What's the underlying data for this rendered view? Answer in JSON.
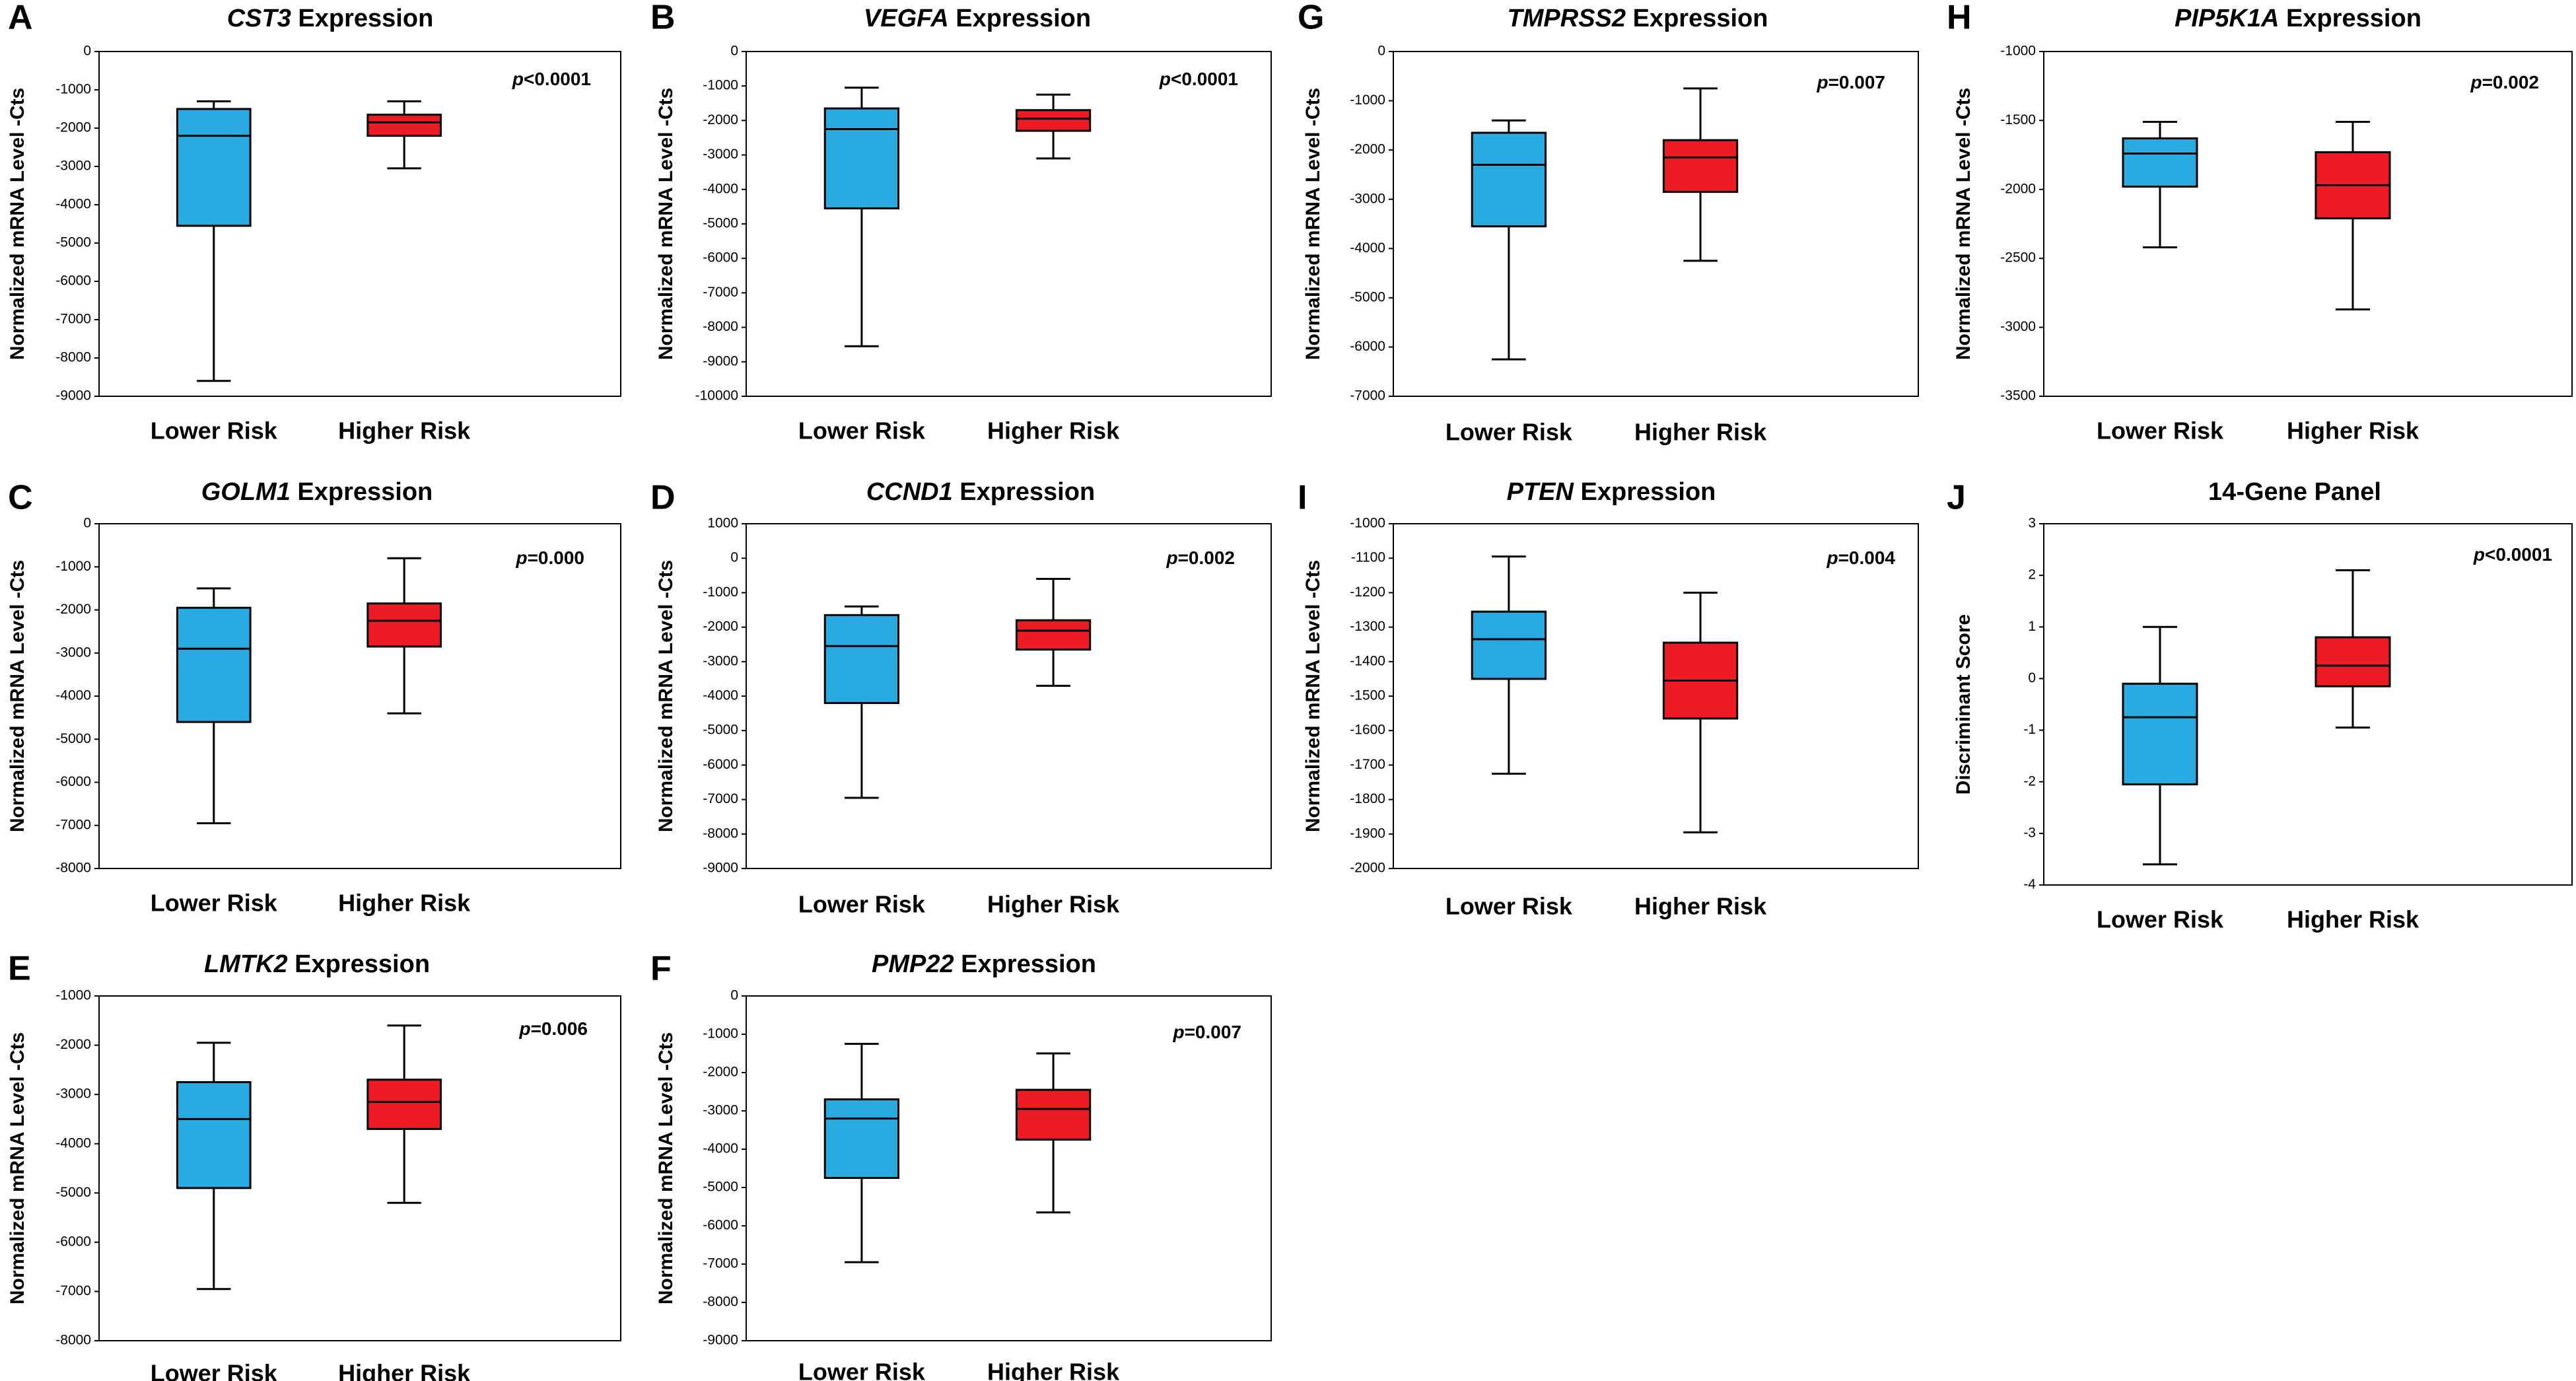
{
  "colors": {
    "lower": "#29abe2",
    "higher": "#ed1c24",
    "stroke": "#000000"
  },
  "chart_data": [
    {
      "type": "box",
      "id": "panel-a",
      "letter": "A",
      "title_italic": "CST3",
      "title_rest": " Expression",
      "ylabel": "Normalized mRNA Level -Cts",
      "ylim": [
        -9000,
        0
      ],
      "yticks": [
        0,
        -1000,
        -2000,
        -3000,
        -4000,
        -5000,
        -6000,
        -7000,
        -8000,
        -9000
      ],
      "ytick_labels": [
        "0",
        "-1000",
        "-2000",
        "-3000",
        "-4000",
        "-5000",
        "-6000",
        "-7000",
        "-8000",
        "-9000"
      ],
      "categories": [
        "Lower Risk",
        "Higher Risk"
      ],
      "p_prefix": "p",
      "p_rest": "<0.0001",
      "boxes": [
        {
          "name": "Lower Risk",
          "whisker_high": -1300,
          "q3": -1500,
          "median": -2200,
          "q1": -4550,
          "whisker_low": -8600
        },
        {
          "name": "Higher Risk",
          "whisker_high": -1300,
          "q3": -1650,
          "median": -1850,
          "q1": -2200,
          "whisker_low": -3050
        }
      ]
    },
    {
      "type": "box",
      "id": "panel-b",
      "letter": "B",
      "title_italic": "VEGFA",
      "title_rest": " Expression",
      "ylabel": "Normalized mRNA Level -Cts",
      "ylim": [
        -10000,
        0
      ],
      "yticks": [
        0,
        -1000,
        -2000,
        -3000,
        -4000,
        -5000,
        -6000,
        -7000,
        -8000,
        -9000,
        -10000
      ],
      "ytick_labels": [
        "0",
        "-1000",
        "-2000",
        "-3000",
        "-4000",
        "-5000",
        "-6000",
        "-7000",
        "-8000",
        "-9000",
        "-10000"
      ],
      "categories": [
        "Lower Risk",
        "Higher Risk"
      ],
      "p_prefix": "p",
      "p_rest": "<0.0001",
      "boxes": [
        {
          "name": "Lower Risk",
          "whisker_high": -1050,
          "q3": -1650,
          "median": -2250,
          "q1": -4550,
          "whisker_low": -8550
        },
        {
          "name": "Higher Risk",
          "whisker_high": -1250,
          "q3": -1700,
          "median": -1950,
          "q1": -2300,
          "whisker_low": -3100
        }
      ]
    },
    {
      "type": "box",
      "id": "panel-g",
      "letter": "G",
      "title_italic": "TMPRSS2",
      "title_rest": " Expression",
      "ylabel": "Normalized mRNA Level -Cts",
      "ylim": [
        -7000,
        0
      ],
      "yticks": [
        0,
        -1000,
        -2000,
        -3000,
        -4000,
        -5000,
        -6000,
        -7000
      ],
      "ytick_labels": [
        "0",
        "-1000",
        "-2000",
        "-3000",
        "-4000",
        "-5000",
        "-6000",
        "-7000"
      ],
      "categories": [
        "Lower Risk",
        "Higher Risk"
      ],
      "p_prefix": "p",
      "p_rest": "=0.007",
      "boxes": [
        {
          "name": "Lower Risk",
          "whisker_high": -1400,
          "q3": -1650,
          "median": -2300,
          "q1": -3550,
          "whisker_low": -6250
        },
        {
          "name": "Higher Risk",
          "whisker_high": -750,
          "q3": -1800,
          "median": -2150,
          "q1": -2850,
          "whisker_low": -4250
        }
      ]
    },
    {
      "type": "box",
      "id": "panel-h",
      "letter": "H",
      "title_italic": "PIP5K1A",
      "title_rest": " Expression",
      "ylabel": "Normalized mRNA Level -Cts",
      "ylim": [
        -3500,
        -1000
      ],
      "yticks": [
        -1000,
        -1500,
        -2000,
        -2500,
        -3000,
        -3500
      ],
      "ytick_labels": [
        "-1000",
        "-1500",
        "-2000",
        "-2500",
        "-3000",
        "-3500"
      ],
      "categories": [
        "Lower Risk",
        "Higher Risk"
      ],
      "p_prefix": "p",
      "p_rest": "=0.002",
      "boxes": [
        {
          "name": "Lower Risk",
          "whisker_high": -1510,
          "q3": -1630,
          "median": -1740,
          "q1": -1980,
          "whisker_low": -2420
        },
        {
          "name": "Higher Risk",
          "whisker_high": -1510,
          "q3": -1730,
          "median": -1970,
          "q1": -2210,
          "whisker_low": -2870
        }
      ]
    },
    {
      "type": "box",
      "id": "panel-c",
      "letter": "C",
      "title_italic": "GOLM1",
      "title_rest": " Expression",
      "ylabel": "Normalized mRNA Level -Cts",
      "ylim": [
        -8000,
        0
      ],
      "yticks": [
        0,
        -1000,
        -2000,
        -3000,
        -4000,
        -5000,
        -6000,
        -7000,
        -8000
      ],
      "ytick_labels": [
        "0",
        "-1000",
        "-2000",
        "-3000",
        "-4000",
        "-5000",
        "-6000",
        "-7000",
        "-8000"
      ],
      "categories": [
        "Lower Risk",
        "Higher Risk"
      ],
      "p_prefix": "p",
      "p_rest": "=0.000",
      "boxes": [
        {
          "name": "Lower Risk",
          "whisker_high": -1500,
          "q3": -1950,
          "median": -2900,
          "q1": -4600,
          "whisker_low": -6950
        },
        {
          "name": "Higher Risk",
          "whisker_high": -800,
          "q3": -1850,
          "median": -2250,
          "q1": -2850,
          "whisker_low": -4400
        }
      ]
    },
    {
      "type": "box",
      "id": "panel-d",
      "letter": "D",
      "title_italic": "CCND1",
      "title_rest": " Expression",
      "ylabel": "Normalized mRNA Level -Cts",
      "ylim": [
        -9000,
        1000
      ],
      "yticks": [
        1000,
        0,
        -1000,
        -2000,
        -3000,
        -4000,
        -5000,
        -6000,
        -7000,
        -8000,
        -9000
      ],
      "ytick_labels": [
        "1000",
        "0",
        "-1000",
        "-2000",
        "-3000",
        "-4000",
        "-5000",
        "-6000",
        "-7000",
        "-8000",
        "-9000"
      ],
      "categories": [
        "Lower Risk",
        "Higher Risk"
      ],
      "p_prefix": "p",
      "p_rest": "=0.002",
      "boxes": [
        {
          "name": "Lower Risk",
          "whisker_high": -1400,
          "q3": -1650,
          "median": -2550,
          "q1": -4200,
          "whisker_low": -6950
        },
        {
          "name": "Higher Risk",
          "whisker_high": -600,
          "q3": -1800,
          "median": -2100,
          "q1": -2650,
          "whisker_low": -3700
        }
      ]
    },
    {
      "type": "box",
      "id": "panel-i",
      "letter": "I",
      "title_italic": "PTEN",
      "title_rest": " Expression",
      "ylabel": "Normalized mRNA Level -Cts",
      "ylim": [
        -2000,
        -1000
      ],
      "yticks": [
        -1000,
        -1100,
        -1200,
        -1300,
        -1400,
        -1500,
        -1600,
        -1700,
        -1800,
        -1900,
        -2000
      ],
      "ytick_labels": [
        "-1000",
        "-1100",
        "-1200",
        "-1300",
        "-1400",
        "-1500",
        "-1600",
        "-1700",
        "-1800",
        "-1900",
        "-2000"
      ],
      "categories": [
        "Lower Risk",
        "Higher Risk"
      ],
      "p_prefix": "p",
      "p_rest": "=0.004",
      "boxes": [
        {
          "name": "Lower Risk",
          "whisker_high": -1095,
          "q3": -1255,
          "median": -1335,
          "q1": -1450,
          "whisker_low": -1725
        },
        {
          "name": "Higher Risk",
          "whisker_high": -1200,
          "q3": -1345,
          "median": -1455,
          "q1": -1565,
          "whisker_low": -1895
        }
      ]
    },
    {
      "type": "box",
      "id": "panel-j",
      "letter": "J",
      "title_italic": "",
      "title_rest": "14-Gene Panel",
      "ylabel": "Discriminant Score",
      "ylim": [
        -4,
        3
      ],
      "yticks": [
        3,
        2,
        1,
        0,
        -1,
        -2,
        -3,
        -4
      ],
      "ytick_labels": [
        "3",
        "2",
        "1",
        "0",
        "-1",
        "-2",
        "-3",
        "-4"
      ],
      "categories": [
        "Lower Risk",
        "Higher Risk"
      ],
      "p_prefix": "p",
      "p_rest": "<0.0001",
      "boxes": [
        {
          "name": "Lower Risk",
          "whisker_high": 1.0,
          "q3": -0.1,
          "median": -0.75,
          "q1": -2.05,
          "whisker_low": -3.6
        },
        {
          "name": "Higher Risk",
          "whisker_high": 2.1,
          "q3": 0.8,
          "median": 0.25,
          "q1": -0.15,
          "whisker_low": -0.95
        }
      ]
    },
    {
      "type": "box",
      "id": "panel-e",
      "letter": "E",
      "title_italic": "LMTK2",
      "title_rest": " Expression",
      "ylabel": "Normalized mRNA Level -Cts",
      "ylim": [
        -8000,
        -1000
      ],
      "yticks": [
        -1000,
        -2000,
        -3000,
        -4000,
        -5000,
        -6000,
        -7000,
        -8000
      ],
      "ytick_labels": [
        "-1000",
        "-2000",
        "-3000",
        "-4000",
        "-5000",
        "-6000",
        "-7000",
        "-8000"
      ],
      "categories": [
        "Lower Risk",
        "Higher Risk"
      ],
      "p_prefix": "p",
      "p_rest": "=0.006",
      "boxes": [
        {
          "name": "Lower Risk",
          "whisker_high": -1950,
          "q3": -2750,
          "median": -3500,
          "q1": -4900,
          "whisker_low": -6950
        },
        {
          "name": "Higher Risk",
          "whisker_high": -1600,
          "q3": -2700,
          "median": -3150,
          "q1": -3700,
          "whisker_low": -5200
        }
      ]
    },
    {
      "type": "box",
      "id": "panel-f",
      "letter": "F",
      "title_italic": "PMP22",
      "title_rest": " Expression",
      "ylabel": "Normalized mRNA Level -Cts",
      "ylim": [
        -9000,
        0
      ],
      "yticks": [
        0,
        -1000,
        -2000,
        -3000,
        -4000,
        -5000,
        -6000,
        -7000,
        -8000,
        -9000
      ],
      "ytick_labels": [
        "0",
        "-1000",
        "-2000",
        "-3000",
        "-4000",
        "-5000",
        "-6000",
        "-7000",
        "-8000",
        "-9000"
      ],
      "categories": [
        "Lower Risk",
        "Higher Risk"
      ],
      "p_prefix": "p",
      "p_rest": "=0.007",
      "boxes": [
        {
          "name": "Lower Risk",
          "whisker_high": -1250,
          "q3": -2700,
          "median": -3200,
          "q1": -4750,
          "whisker_low": -6950
        },
        {
          "name": "Higher Risk",
          "whisker_high": -1500,
          "q3": -2450,
          "median": -2950,
          "q1": -3750,
          "whisker_low": -5650
        }
      ]
    }
  ]
}
